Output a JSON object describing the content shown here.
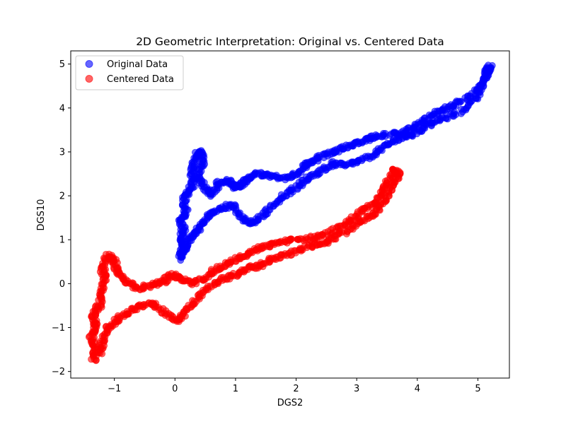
{
  "chart_data": {
    "type": "scatter",
    "title": "2D Geometric Interpretation: Original vs. Centered Data",
    "xlabel": "DGS2",
    "ylabel": "DGS10",
    "xlim": [
      -1.72,
      5.52
    ],
    "ylim": [
      -2.15,
      5.3
    ],
    "xticks": [
      -1,
      0,
      1,
      2,
      3,
      4,
      5
    ],
    "yticks": [
      -2,
      -1,
      0,
      1,
      2,
      3,
      4,
      5
    ],
    "grid": false,
    "legend_position": "top-left",
    "series": [
      {
        "name": "Original Data",
        "color": "#0000ff",
        "path": [
          [
            0.08,
            0.55
          ],
          [
            0.12,
            0.75
          ],
          [
            0.1,
            1.0
          ],
          [
            0.14,
            1.2
          ],
          [
            0.1,
            1.45
          ],
          [
            0.18,
            1.6
          ],
          [
            0.15,
            1.9
          ],
          [
            0.22,
            2.1
          ],
          [
            0.3,
            2.3
          ],
          [
            0.28,
            2.6
          ],
          [
            0.35,
            2.9
          ],
          [
            0.42,
            3.02
          ],
          [
            0.45,
            2.75
          ],
          [
            0.38,
            2.45
          ],
          [
            0.5,
            2.2
          ],
          [
            0.6,
            2.0
          ],
          [
            0.72,
            2.3
          ],
          [
            0.88,
            2.35
          ],
          [
            1.0,
            2.2
          ],
          [
            1.1,
            2.25
          ],
          [
            1.2,
            2.4
          ],
          [
            1.35,
            2.5
          ],
          [
            1.55,
            2.45
          ],
          [
            1.8,
            2.4
          ],
          [
            2.0,
            2.5
          ],
          [
            2.15,
            2.7
          ],
          [
            2.3,
            2.8
          ],
          [
            2.5,
            2.95
          ],
          [
            2.7,
            3.05
          ],
          [
            2.9,
            3.15
          ],
          [
            3.1,
            3.25
          ],
          [
            3.3,
            3.35
          ],
          [
            3.55,
            3.4
          ],
          [
            3.8,
            3.45
          ],
          [
            4.0,
            3.6
          ],
          [
            4.2,
            3.8
          ],
          [
            4.4,
            3.95
          ],
          [
            4.6,
            4.05
          ],
          [
            4.85,
            4.25
          ],
          [
            5.05,
            4.5
          ],
          [
            5.15,
            4.85
          ],
          [
            5.2,
            4.95
          ],
          [
            5.1,
            4.6
          ],
          [
            4.95,
            4.2
          ],
          [
            4.7,
            3.9
          ],
          [
            4.4,
            3.75
          ],
          [
            4.15,
            3.6
          ],
          [
            3.95,
            3.4
          ],
          [
            3.75,
            3.35
          ],
          [
            3.5,
            3.2
          ],
          [
            3.3,
            2.95
          ],
          [
            3.05,
            2.8
          ],
          [
            2.8,
            2.7
          ],
          [
            2.6,
            2.75
          ],
          [
            2.4,
            2.55
          ],
          [
            2.2,
            2.4
          ],
          [
            2.0,
            2.2
          ],
          [
            1.8,
            2.0
          ],
          [
            1.6,
            1.75
          ],
          [
            1.4,
            1.5
          ],
          [
            1.25,
            1.35
          ],
          [
            1.1,
            1.5
          ],
          [
            0.95,
            1.8
          ],
          [
            0.75,
            1.7
          ],
          [
            0.55,
            1.55
          ],
          [
            0.42,
            1.3
          ],
          [
            0.3,
            1.1
          ],
          [
            0.2,
            0.9
          ],
          [
            0.15,
            0.7
          ]
        ]
      },
      {
        "name": "Centered Data",
        "color": "#ff0000",
        "path": [
          [
            -1.35,
            -1.75
          ],
          [
            -1.3,
            -1.5
          ],
          [
            -1.38,
            -1.2
          ],
          [
            -1.3,
            -0.95
          ],
          [
            -1.35,
            -0.7
          ],
          [
            -1.25,
            -0.5
          ],
          [
            -1.2,
            -0.2
          ],
          [
            -1.15,
            0.1
          ],
          [
            -1.2,
            0.35
          ],
          [
            -1.1,
            0.65
          ],
          [
            -1.0,
            0.5
          ],
          [
            -0.95,
            0.25
          ],
          [
            -0.8,
            0.05
          ],
          [
            -0.6,
            -0.1
          ],
          [
            -0.4,
            -0.05
          ],
          [
            -0.2,
            0.05
          ],
          [
            -0.05,
            0.2
          ],
          [
            0.1,
            0.1
          ],
          [
            0.3,
            0.0
          ],
          [
            0.5,
            0.15
          ],
          [
            0.7,
            0.35
          ],
          [
            0.9,
            0.5
          ],
          [
            1.1,
            0.6
          ],
          [
            1.3,
            0.75
          ],
          [
            1.5,
            0.85
          ],
          [
            1.75,
            0.95
          ],
          [
            2.0,
            1.0
          ],
          [
            2.3,
            1.05
          ],
          [
            2.55,
            1.15
          ],
          [
            2.8,
            1.35
          ],
          [
            3.0,
            1.55
          ],
          [
            3.2,
            1.75
          ],
          [
            3.4,
            2.0
          ],
          [
            3.5,
            2.3
          ],
          [
            3.62,
            2.6
          ],
          [
            3.7,
            2.5
          ],
          [
            3.6,
            2.2
          ],
          [
            3.45,
            1.9
          ],
          [
            3.3,
            1.6
          ],
          [
            3.1,
            1.45
          ],
          [
            2.85,
            1.2
          ],
          [
            2.6,
            1.0
          ],
          [
            2.35,
            0.9
          ],
          [
            2.1,
            0.8
          ],
          [
            1.85,
            0.65
          ],
          [
            1.6,
            0.55
          ],
          [
            1.4,
            0.4
          ],
          [
            1.2,
            0.35
          ],
          [
            1.0,
            0.2
          ],
          [
            0.8,
            0.1
          ],
          [
            0.55,
            -0.1
          ],
          [
            0.35,
            -0.35
          ],
          [
            0.2,
            -0.6
          ],
          [
            0.05,
            -0.85
          ],
          [
            -0.15,
            -0.7
          ],
          [
            -0.35,
            -0.45
          ],
          [
            -0.55,
            -0.5
          ],
          [
            -0.75,
            -0.65
          ],
          [
            -0.95,
            -0.8
          ],
          [
            -1.1,
            -1.0
          ],
          [
            -1.2,
            -1.3
          ],
          [
            -1.25,
            -1.6
          ]
        ]
      }
    ]
  }
}
